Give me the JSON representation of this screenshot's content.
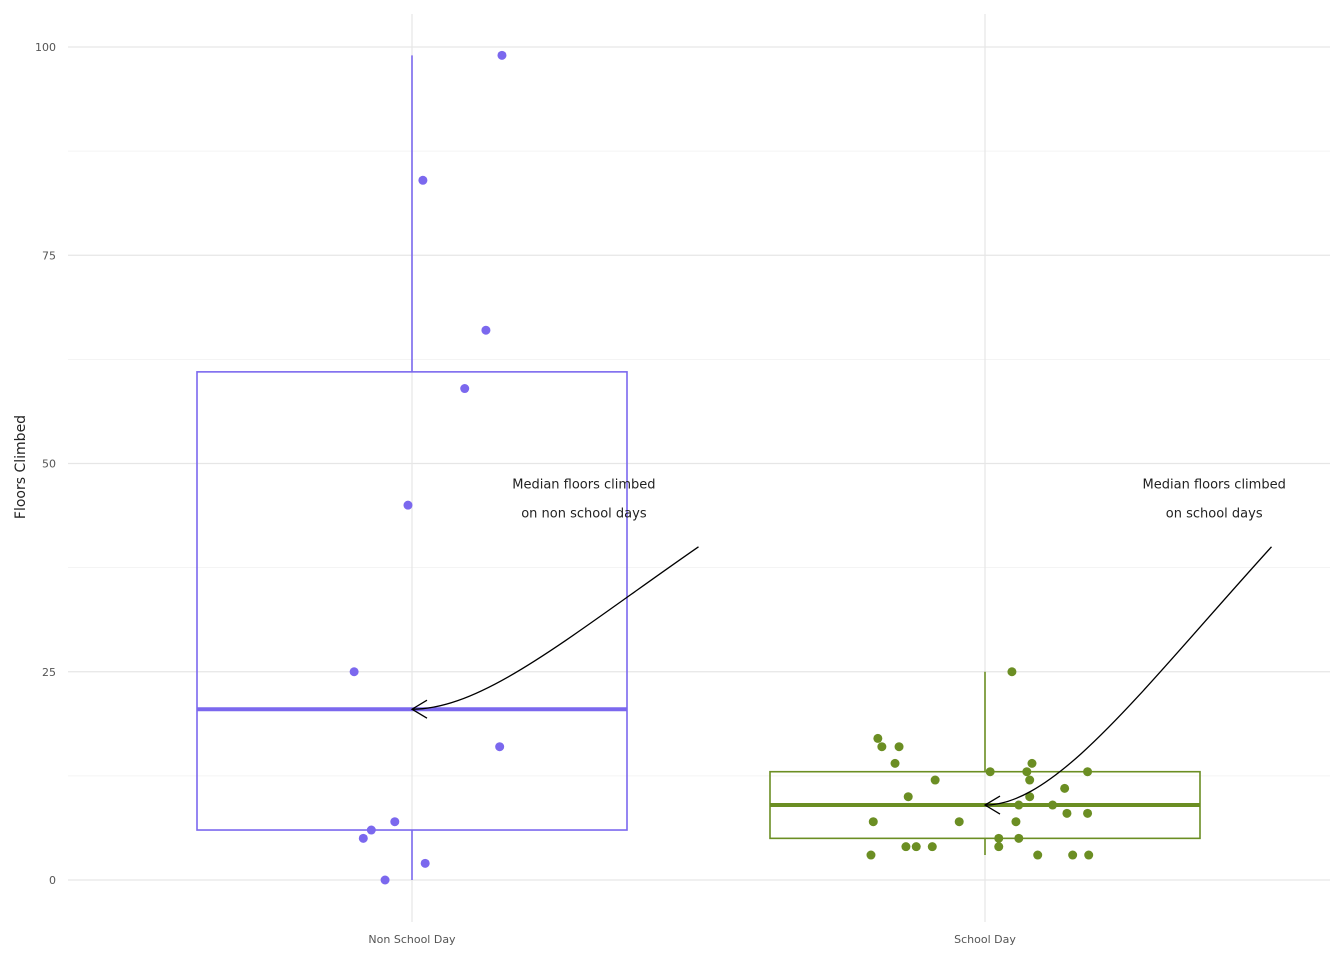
{
  "chart_data": {
    "type": "box",
    "title": "",
    "xlabel": "",
    "ylabel": "Floors Climbed",
    "ylim": [
      -4,
      104
    ],
    "yticks": [
      0,
      25,
      50,
      75,
      100
    ],
    "categories": [
      "Non School Day",
      "School Day"
    ],
    "grid": true,
    "legend": "none",
    "series": [
      {
        "category": "Non School Day",
        "color": "#7b68ee",
        "box": {
          "min": 0,
          "q1": 6,
          "median": 20.5,
          "q3": 61,
          "max": 99
        },
        "points": [
          {
            "x_offset": 0.157,
            "y": 99
          },
          {
            "x_offset": 0.019,
            "y": 84
          },
          {
            "x_offset": 0.129,
            "y": 66
          },
          {
            "x_offset": 0.092,
            "y": 59
          },
          {
            "x_offset": -0.007,
            "y": 45
          },
          {
            "x_offset": -0.101,
            "y": 25
          },
          {
            "x_offset": 0.153,
            "y": 16
          },
          {
            "x_offset": -0.03,
            "y": 7
          },
          {
            "x_offset": -0.071,
            "y": 6
          },
          {
            "x_offset": -0.085,
            "y": 5
          },
          {
            "x_offset": 0.023,
            "y": 2
          },
          {
            "x_offset": -0.047,
            "y": 0
          }
        ]
      },
      {
        "category": "School Day",
        "color": "#6b8e23",
        "box": {
          "min": 3,
          "q1": 5,
          "median": 9,
          "q3": 13,
          "max": 25
        },
        "points": [
          {
            "x_offset": 0.047,
            "y": 25
          },
          {
            "x_offset": -0.187,
            "y": 17
          },
          {
            "x_offset": -0.18,
            "y": 16
          },
          {
            "x_offset": -0.15,
            "y": 16
          },
          {
            "x_offset": -0.157,
            "y": 14
          },
          {
            "x_offset": 0.082,
            "y": 14
          },
          {
            "x_offset": 0.009,
            "y": 13
          },
          {
            "x_offset": 0.073,
            "y": 13
          },
          {
            "x_offset": 0.179,
            "y": 13
          },
          {
            "x_offset": -0.087,
            "y": 12
          },
          {
            "x_offset": 0.078,
            "y": 12
          },
          {
            "x_offset": 0.139,
            "y": 11
          },
          {
            "x_offset": -0.134,
            "y": 10
          },
          {
            "x_offset": 0.078,
            "y": 10
          },
          {
            "x_offset": 0.059,
            "y": 9
          },
          {
            "x_offset": 0.118,
            "y": 9
          },
          {
            "x_offset": 0.143,
            "y": 8
          },
          {
            "x_offset": 0.179,
            "y": 8
          },
          {
            "x_offset": -0.195,
            "y": 7
          },
          {
            "x_offset": -0.045,
            "y": 7
          },
          {
            "x_offset": 0.054,
            "y": 7
          },
          {
            "x_offset": 0.024,
            "y": 5
          },
          {
            "x_offset": 0.059,
            "y": 5
          },
          {
            "x_offset": -0.138,
            "y": 4
          },
          {
            "x_offset": -0.12,
            "y": 4
          },
          {
            "x_offset": -0.092,
            "y": 4
          },
          {
            "x_offset": 0.024,
            "y": 4
          },
          {
            "x_offset": -0.199,
            "y": 3
          },
          {
            "x_offset": 0.092,
            "y": 3
          },
          {
            "x_offset": 0.153,
            "y": 3
          },
          {
            "x_offset": 0.181,
            "y": 3
          }
        ]
      }
    ],
    "annotations": [
      {
        "lines": [
          "Median floors climbed",
          "on non school days"
        ],
        "category": "Non School Day",
        "anchor_x_offset": 0.3,
        "anchor_y": 46.5,
        "arrow_from": {
          "x_offset": 0.5,
          "y": 40
        },
        "arrow_to": {
          "x_offset": 0.0,
          "y": 20.5
        }
      },
      {
        "lines": [
          "Median floors climbed",
          "on school days"
        ],
        "category": "School Day",
        "anchor_x_offset": 0.4,
        "anchor_y": 46.5,
        "arrow_from": {
          "x_offset": 0.5,
          "y": 40
        },
        "arrow_to": {
          "x_offset": 0.0,
          "y": 9
        }
      }
    ]
  }
}
